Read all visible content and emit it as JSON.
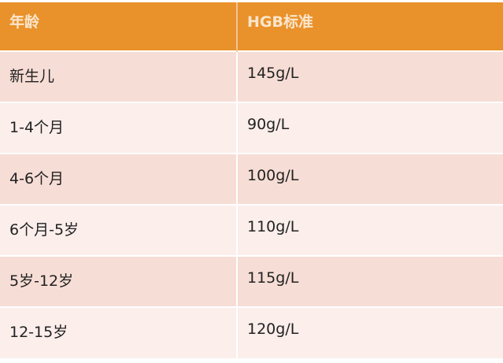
{
  "table": {
    "headers": [
      "年龄",
      "HGB标准"
    ],
    "rows": [
      [
        "新生儿",
        "145g/L"
      ],
      [
        "1-4个月",
        "90g/L"
      ],
      [
        "4-6个月",
        "100g/L"
      ],
      [
        "6个月-5岁",
        "110g/L"
      ],
      [
        "5岁-12岁",
        "115g/L"
      ],
      [
        "12-15岁",
        "120g/L"
      ]
    ]
  },
  "colors": {
    "header": "#E9912A",
    "row_odd": "#F6DDD5",
    "row_even": "#FBEEEB"
  }
}
